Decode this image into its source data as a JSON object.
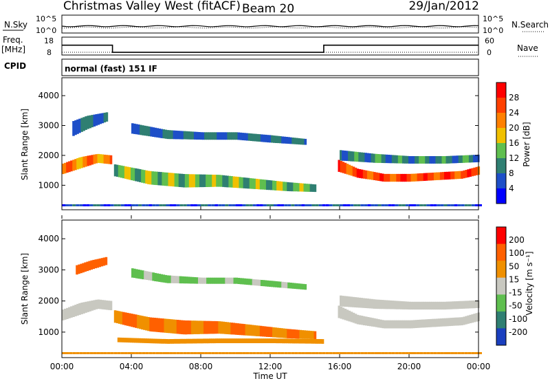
{
  "header": {
    "title": "Christmas Valley West (fitACF)",
    "beam": "Beam 20",
    "date": "29/Jan/2012",
    "nsky_label": "N.Sky",
    "nsearch_label": "N.Search",
    "freq_label": "Freq.",
    "freq_unit": "[MHz]",
    "nave_label": "Nave",
    "cpid_label": "CPID",
    "cpid_value": "normal (fast) 151 IF",
    "noise_ticks": [
      "10^5",
      "10^0"
    ],
    "freq_ticks": [
      "18",
      "8"
    ],
    "nave_ticks": [
      "60",
      "0"
    ]
  },
  "chart_data": [
    {
      "type": "line",
      "name": "frequency-panel",
      "xlabel": "",
      "ylabel": "Freq. [MHz]",
      "ylim": [
        8,
        18
      ],
      "x": [
        "00:00",
        "02:55",
        "02:55",
        "15:05",
        "15:05",
        "24:00"
      ],
      "values": [
        13.5,
        13.5,
        9.5,
        9.5,
        13.5,
        13.5
      ]
    },
    {
      "type": "heatmap",
      "name": "power-panel",
      "xlabel": "",
      "ylabel": "Slant Range [km]",
      "ylim": [
        180,
        4600
      ],
      "yticks": [
        "1000",
        "2000",
        "3000",
        "4000"
      ],
      "colorbar_label": "Power [dB]",
      "colorbar_ticks": [
        "4",
        "8",
        "12",
        "16",
        "20",
        "24",
        "28"
      ],
      "colors": [
        "#0000ff",
        "#1e4fc8",
        "#2f7f72",
        "#5fbf4f",
        "#f0c000",
        "#ff8000",
        "#ff4000",
        "#ff0000"
      ],
      "bands": [
        {
          "t": [
            0.0,
            1.0,
            2.0,
            2.8
          ],
          "center": [
            1550,
            1750,
            1900,
            1850
          ],
          "width": [
            350,
            380,
            300,
            300
          ],
          "value": 22
        },
        {
          "t": [
            0.6,
            1.4,
            2.6
          ],
          "center": [
            2900,
            3100,
            3300
          ],
          "width": [
            500,
            450,
            300
          ],
          "value": 8
        },
        {
          "t": [
            3.0,
            5.0,
            7.0,
            9.0,
            11.0,
            13.0,
            14.6
          ],
          "center": [
            1500,
            1250,
            1150,
            1150,
            1050,
            950,
            900
          ],
          "width": [
            400,
            450,
            450,
            400,
            350,
            300,
            250
          ],
          "value": 14
        },
        {
          "t": [
            4.0,
            6.0,
            8.0,
            10.0,
            12.0,
            14.0
          ],
          "center": [
            2900,
            2700,
            2650,
            2650,
            2550,
            2450
          ],
          "width": [
            350,
            300,
            250,
            250,
            250,
            200
          ],
          "value": 8
        },
        {
          "t": [
            15.9,
            17.0,
            18.5,
            20.0,
            21.5,
            23.0,
            24.0
          ],
          "center": [
            1650,
            1400,
            1250,
            1250,
            1300,
            1350,
            1500
          ],
          "width": [
            400,
            300,
            260,
            260,
            260,
            260,
            280
          ],
          "value": 26
        },
        {
          "t": [
            16.0,
            18.0,
            20.0,
            22.0,
            24.0
          ],
          "center": [
            2000,
            1900,
            1850,
            1850,
            1900
          ],
          "width": [
            350,
            300,
            250,
            250,
            250
          ],
          "value": 10
        }
      ]
    },
    {
      "type": "heatmap",
      "name": "velocity-panel",
      "xlabel": "Time UT",
      "ylabel": "Slant Range [km]",
      "ylim": [
        180,
        4600
      ],
      "yticks": [
        "1000",
        "2000",
        "3000",
        "4000"
      ],
      "xticks": [
        "00:00",
        "04:00",
        "08:00",
        "12:00",
        "16:00",
        "20:00",
        "00:00"
      ],
      "colorbar_label": "Velocity [m s⁻¹]",
      "colorbar_ticks": [
        "200",
        "100",
        "50",
        "15",
        "-15",
        "-50",
        "-100",
        "-200"
      ],
      "colors": [
        "#1a3fbf",
        "#2f7f72",
        "#5fbf4f",
        "#c8c8c0",
        "#f09000",
        "#ff6000",
        "#ff0000"
      ],
      "bands": [
        {
          "t": [
            0.0,
            1.0,
            2.0,
            2.8
          ],
          "center": [
            1550,
            1750,
            1900,
            1850
          ],
          "width": [
            350,
            380,
            300,
            300
          ],
          "value": 0
        },
        {
          "t": [
            0.8,
            1.6,
            2.6
          ],
          "center": [
            3000,
            3150,
            3300
          ],
          "width": [
            300,
            300,
            250
          ],
          "value": -60
        },
        {
          "t": [
            3.0,
            5.0,
            7.0,
            9.0,
            11.0,
            13.0,
            14.6
          ],
          "center": [
            1500,
            1250,
            1150,
            1150,
            1050,
            950,
            900
          ],
          "width": [
            400,
            450,
            450,
            400,
            350,
            300,
            250
          ],
          "value": -50
        },
        {
          "t": [
            3.2,
            6.0,
            9.0,
            12.0,
            15.0
          ],
          "center": [
            750,
            700,
            720,
            720,
            700
          ],
          "width": [
            150,
            150,
            150,
            150,
            150
          ],
          "value": -30
        },
        {
          "t": [
            4.0,
            6.0,
            8.0,
            10.0,
            12.0,
            14.0
          ],
          "center": [
            2900,
            2700,
            2650,
            2650,
            2550,
            2450
          ],
          "width": [
            300,
            250,
            200,
            200,
            200,
            180
          ],
          "value": 20
        },
        {
          "t": [
            15.9,
            17.0,
            18.5,
            20.0,
            21.5,
            23.0,
            24.0
          ],
          "center": [
            1650,
            1400,
            1250,
            1250,
            1300,
            1350,
            1500
          ],
          "width": [
            400,
            300,
            260,
            260,
            260,
            260,
            280
          ],
          "value": 0
        },
        {
          "t": [
            16.0,
            18.0,
            20.0,
            22.0,
            24.0
          ],
          "center": [
            2000,
            1900,
            1850,
            1850,
            1900
          ],
          "width": [
            350,
            300,
            250,
            250,
            250
          ],
          "value": 0
        }
      ]
    }
  ]
}
